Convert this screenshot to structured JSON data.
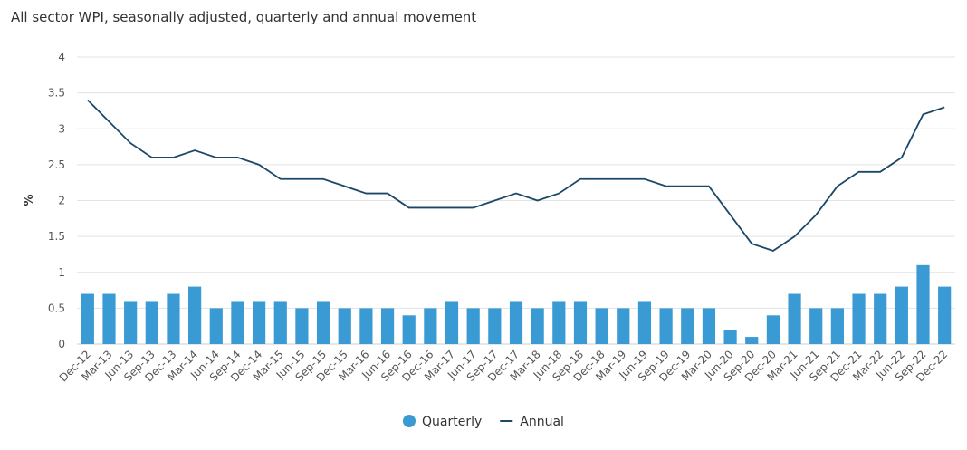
{
  "chart_data": {
    "type": "bar-line",
    "title": "All sector WPI, seasonally adjusted, quarterly and annual movement",
    "y_label": "%",
    "categories": [
      "Dec-12",
      "Mar-13",
      "Jun-13",
      "Sep-13",
      "Dec-13",
      "Mar-14",
      "Jun-14",
      "Sep-14",
      "Dec-14",
      "Mar-15",
      "Jun-15",
      "Sep-15",
      "Dec-15",
      "Mar-16",
      "Jun-16",
      "Sep-16",
      "Dec-16",
      "Mar-17",
      "Jun-17",
      "Sep-17",
      "Dec-17",
      "Mar-18",
      "Jun-18",
      "Sep-18",
      "Dec-18",
      "Mar-19",
      "Jun-19",
      "Sep-19",
      "Dec-19",
      "Mar-20",
      "Jun-20",
      "Sep-20",
      "Dec-20",
      "Mar-21",
      "Jun-21",
      "Sep-21",
      "Dec-21",
      "Mar-22",
      "Jun-22",
      "Sep-22",
      "Dec-22"
    ],
    "series": [
      {
        "name": "Quarterly",
        "type": "bar",
        "color": "#3a9ad4",
        "values": [
          0.7,
          0.7,
          0.6,
          0.6,
          0.7,
          0.8,
          0.5,
          0.6,
          0.6,
          0.6,
          0.5,
          0.6,
          0.5,
          0.5,
          0.5,
          0.4,
          0.5,
          0.6,
          0.5,
          0.5,
          0.6,
          0.5,
          0.6,
          0.6,
          0.5,
          0.5,
          0.6,
          0.5,
          0.5,
          0.5,
          0.2,
          0.1,
          0.4,
          0.7,
          0.5,
          0.5,
          0.7,
          0.7,
          0.8,
          1.1,
          0.8
        ]
      },
      {
        "name": "Annual",
        "type": "line",
        "color": "#1c4868",
        "values": [
          3.4,
          3.1,
          2.8,
          2.6,
          2.6,
          2.7,
          2.6,
          2.6,
          2.5,
          2.3,
          2.3,
          2.3,
          2.2,
          2.1,
          2.1,
          1.9,
          1.9,
          1.9,
          1.9,
          2.0,
          2.1,
          2.0,
          2.1,
          2.3,
          2.3,
          2.3,
          2.3,
          2.2,
          2.2,
          2.2,
          1.8,
          1.4,
          1.3,
          1.5,
          1.8,
          2.2,
          2.4,
          2.4,
          2.6,
          3.2,
          3.3
        ]
      }
    ],
    "ylim": [
      0,
      4
    ],
    "yticks": [
      0,
      0.5,
      1,
      1.5,
      2,
      2.5,
      3,
      3.5,
      4
    ],
    "grid": true,
    "legend": "bottom"
  }
}
